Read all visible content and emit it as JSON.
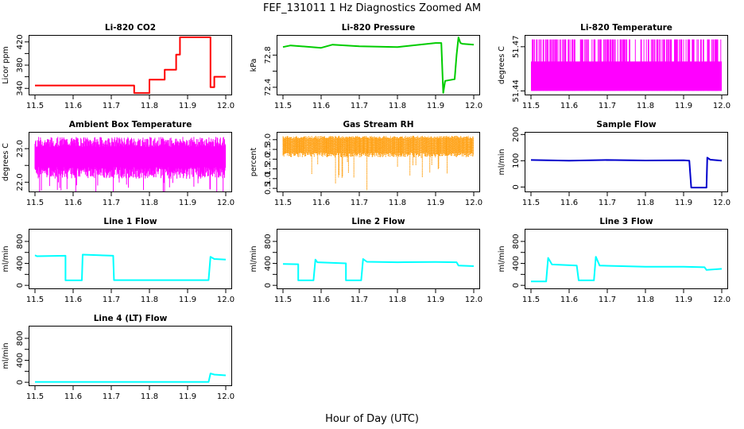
{
  "title": "FEF_131011  1 Hz Diagnostics Zoomed AM",
  "xlabel": "Hour of Day (UTC)",
  "chart_data": [
    {
      "type": "line",
      "title": "Li-820 CO2",
      "ylabel": "Licor ppm",
      "color": "#ff0000",
      "xlim": [
        11.5,
        12.0
      ],
      "xticks": [
        "11.5",
        "11.6",
        "11.7",
        "11.8",
        "11.9",
        "12.0"
      ],
      "ylim": [
        328,
        432
      ],
      "yticks": [
        340,
        360,
        380,
        400,
        420
      ],
      "ytick_labels": [
        "340",
        "",
        "380",
        "",
        "420"
      ],
      "series": [
        {
          "x": [
            11.5,
            11.76,
            11.76,
            11.8,
            11.8,
            11.84,
            11.84,
            11.87,
            11.87,
            11.88,
            11.88,
            11.96,
            11.96,
            11.97,
            11.97,
            12.0
          ],
          "y": [
            345,
            345,
            332,
            332,
            355,
            355,
            372,
            372,
            398,
            398,
            428,
            428,
            342,
            342,
            360,
            360
          ]
        }
      ]
    },
    {
      "type": "line",
      "title": "Li-820 Pressure",
      "ylabel": "kPa",
      "color": "#00cc00",
      "xlim": [
        11.5,
        12.0
      ],
      "xticks": [
        "11.5",
        "11.6",
        "11.7",
        "11.8",
        "11.9",
        "12.0"
      ],
      "ylim": [
        72.3,
        73.05
      ],
      "yticks": [
        72.4,
        72.6,
        72.8
      ],
      "ytick_labels": [
        "72.4",
        "",
        "72.8"
      ],
      "series": [
        {
          "x": [
            11.5,
            11.52,
            11.6,
            11.63,
            11.7,
            11.8,
            11.9,
            11.915,
            11.92,
            11.925,
            11.95,
            11.955,
            11.96,
            11.965,
            11.97,
            12.0
          ],
          "y": [
            72.9,
            72.92,
            72.89,
            72.93,
            72.91,
            72.9,
            72.95,
            72.95,
            72.33,
            72.48,
            72.5,
            72.8,
            73.02,
            72.95,
            72.94,
            72.93
          ]
        }
      ]
    },
    {
      "type": "line",
      "title": "Li-820 Temperature",
      "ylabel": "degrees C",
      "color": "#ff00ff",
      "xlim": [
        11.5,
        12.0
      ],
      "xticks": [
        "11.5",
        "11.6",
        "11.7",
        "11.8",
        "11.9",
        "12.0"
      ],
      "ylim": [
        51.437,
        51.478
      ],
      "yticks": [
        51.44,
        51.47
      ],
      "ytick_labels": [
        "51.44",
        "51.47"
      ],
      "levels": [
        51.44,
        51.46,
        51.475
      ],
      "series": [
        {
          "x": [
            11.5,
            11.6,
            11.7,
            11.8,
            11.9,
            12.0
          ],
          "y": [
            51.46,
            51.46,
            51.46,
            51.46,
            51.46,
            51.46
          ]
        }
      ]
    },
    {
      "type": "line",
      "title": "Ambient Box Temperature",
      "ylabel": "degrees C",
      "color": "#ff00ff",
      "xlim": [
        11.5,
        12.0
      ],
      "xticks": [
        "11.5",
        "11.6",
        "11.7",
        "11.8",
        "11.9",
        "12.0"
      ],
      "ylim": [
        21.7,
        23.5
      ],
      "yticks": [
        22.0,
        22.5,
        23.0
      ],
      "ytick_labels": [
        "22.0",
        "",
        "23.0"
      ],
      "series": [
        {
          "x": [
            11.5,
            11.6,
            11.7,
            11.8,
            11.9,
            12.0
          ],
          "y": [
            22.9,
            22.85,
            22.8,
            22.85,
            22.8,
            22.85
          ]
        }
      ]
    },
    {
      "type": "line",
      "title": "Gas Stream RH",
      "ylabel": "percent",
      "color": "#ff9900",
      "xlim": [
        11.5,
        12.0
      ],
      "xticks": [
        "11.5",
        "11.6",
        "11.7",
        "11.8",
        "11.9",
        "12.0"
      ],
      "ylim": [
        0.3,
        3.4
      ],
      "yticks": [
        0.5,
        1.5,
        2.5
      ],
      "ytick_labels": [
        "0.5",
        "1.5",
        "2.5"
      ],
      "extra_yticks": [
        1.0,
        2.0,
        3.0
      ],
      "extra_ytick_labels": [
        "1.0",
        "2.0",
        "3.0"
      ],
      "series": [
        {
          "x": [
            11.5,
            11.6,
            11.7,
            11.8,
            11.9,
            12.0
          ],
          "y": [
            2.8,
            2.75,
            2.7,
            2.75,
            2.7,
            2.75
          ]
        }
      ]
    },
    {
      "type": "line",
      "title": "Sample Flow",
      "ylabel": "ml/min",
      "color": "#0000cc",
      "xlim": [
        11.5,
        12.0
      ],
      "xticks": [
        "11.5",
        "11.6",
        "11.7",
        "11.8",
        "11.9",
        "12.0"
      ],
      "ylim": [
        -20,
        210
      ],
      "yticks": [
        0,
        100,
        200
      ],
      "ytick_labels": [
        "0",
        "100",
        "200"
      ],
      "series": [
        {
          "x": [
            11.5,
            11.6,
            11.7,
            11.8,
            11.9,
            11.915,
            11.92,
            11.96,
            11.962,
            11.97,
            12.0
          ],
          "y": [
            103,
            100,
            103,
            101,
            102,
            100,
            -2,
            -2,
            112,
            104,
            100
          ]
        }
      ]
    },
    {
      "type": "line",
      "title": "Line 1 Flow",
      "ylabel": "ml/min",
      "color": "#00ffff",
      "xlim": [
        11.5,
        12.0
      ],
      "xticks": [
        "11.5",
        "11.6",
        "11.7",
        "11.8",
        "11.9",
        "12.0"
      ],
      "ylim": [
        -70,
        1030
      ],
      "yticks": [
        0,
        200,
        400,
        600,
        800
      ],
      "ytick_labels": [
        "0",
        "",
        "400",
        "",
        "800"
      ],
      "series": [
        {
          "x": [
            11.5,
            11.505,
            11.58,
            11.58,
            11.623,
            11.625,
            11.705,
            11.707,
            11.955,
            11.96,
            11.97,
            12.0
          ],
          "y": [
            550,
            530,
            540,
            90,
            90,
            560,
            540,
            95,
            95,
            520,
            480,
            470
          ]
        }
      ]
    },
    {
      "type": "line",
      "title": "Line 2 Flow",
      "ylabel": "ml/min",
      "color": "#00ffff",
      "xlim": [
        11.5,
        12.0
      ],
      "xticks": [
        "11.5",
        "11.6",
        "11.7",
        "11.8",
        "11.9",
        "12.0"
      ],
      "ylim": [
        -70,
        1030
      ],
      "yticks": [
        0,
        200,
        400,
        600,
        800
      ],
      "ytick_labels": [
        "0",
        "",
        "400",
        "",
        "800"
      ],
      "series": [
        {
          "x": [
            11.5,
            11.54,
            11.54,
            11.58,
            11.585,
            11.59,
            11.665,
            11.665,
            11.705,
            11.71,
            11.72,
            11.8,
            11.9,
            11.955,
            11.96,
            12.0
          ],
          "y": [
            390,
            385,
            90,
            90,
            470,
            420,
            400,
            90,
            90,
            480,
            430,
            420,
            425,
            420,
            360,
            350
          ]
        }
      ]
    },
    {
      "type": "line",
      "title": "Line 3 Flow",
      "ylabel": "ml/min",
      "color": "#00ffff",
      "xlim": [
        11.5,
        12.0
      ],
      "xticks": [
        "11.5",
        "11.6",
        "11.7",
        "11.8",
        "11.9",
        "12.0"
      ],
      "ylim": [
        -70,
        1030
      ],
      "yticks": [
        0,
        200,
        400,
        600,
        800
      ],
      "ytick_labels": [
        "0",
        "",
        "400",
        "",
        "800"
      ],
      "series": [
        {
          "x": [
            11.5,
            11.54,
            11.54,
            11.545,
            11.555,
            11.62,
            11.625,
            11.665,
            11.67,
            11.68,
            11.8,
            11.9,
            11.955,
            11.96,
            12.0
          ],
          "y": [
            70,
            70,
            90,
            500,
            380,
            360,
            90,
            90,
            520,
            360,
            340,
            340,
            330,
            280,
            300
          ]
        }
      ]
    },
    {
      "type": "line",
      "title": "Line 4 (LT) Flow",
      "ylabel": "ml/min",
      "color": "#00ffff",
      "xlim": [
        11.5,
        12.0
      ],
      "xticks": [
        "11.5",
        "11.6",
        "11.7",
        "11.8",
        "11.9",
        "12.0"
      ],
      "ylim": [
        -70,
        1030
      ],
      "yticks": [
        0,
        200,
        400,
        600,
        800
      ],
      "ytick_labels": [
        "0",
        "",
        "400",
        "",
        "800"
      ],
      "series": [
        {
          "x": [
            11.5,
            11.955,
            11.96,
            11.97,
            12.0
          ],
          "y": [
            5,
            5,
            160,
            140,
            125
          ]
        }
      ]
    }
  ]
}
